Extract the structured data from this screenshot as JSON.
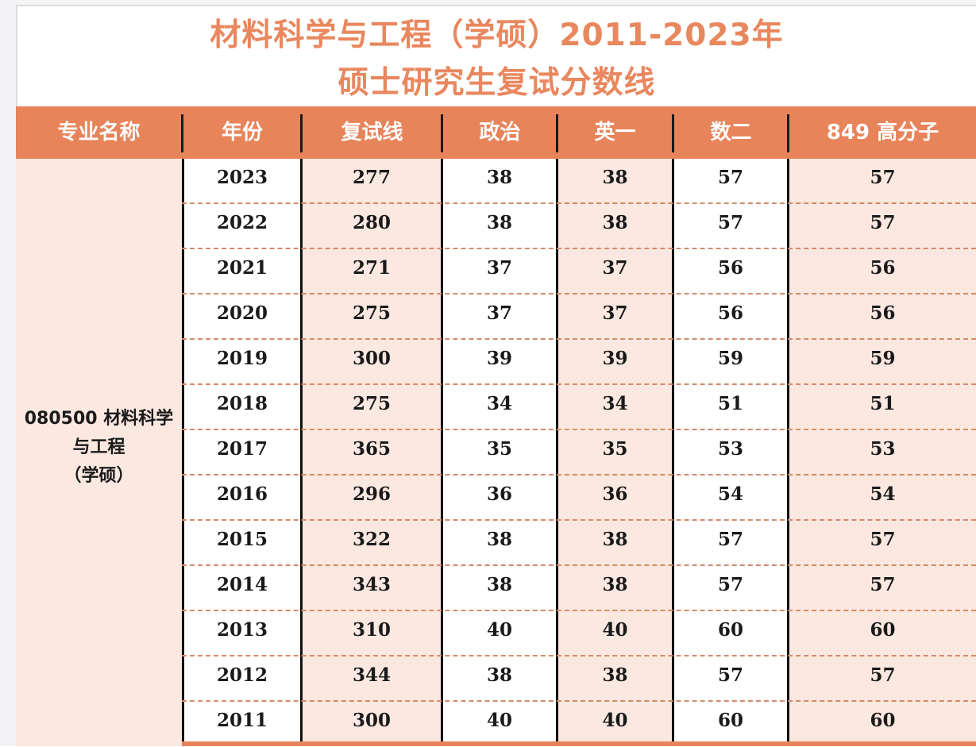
{
  "title": {
    "line1": "材料科学与工程（学硕）2011-2023年",
    "line2": "硕士研究生复试分数线"
  },
  "colors": {
    "accent": "#e8845a",
    "title": "#e9875e",
    "row_tint": "#fbe8e0",
    "separator": "#111111"
  },
  "table": {
    "headers": [
      "专业名称",
      "年份",
      "复试线",
      "政治",
      "英一",
      "数二",
      "849 高分子"
    ],
    "major_name_lines": [
      "080500 材料科学",
      "与工程",
      "（学硕）"
    ],
    "rows": [
      [
        "2023",
        "277",
        "38",
        "38",
        "57",
        "57"
      ],
      [
        "2022",
        "280",
        "38",
        "38",
        "57",
        "57"
      ],
      [
        "2021",
        "271",
        "37",
        "37",
        "56",
        "56"
      ],
      [
        "2020",
        "275",
        "37",
        "37",
        "56",
        "56"
      ],
      [
        "2019",
        "300",
        "39",
        "39",
        "59",
        "59"
      ],
      [
        "2018",
        "275",
        "34",
        "34",
        "51",
        "51"
      ],
      [
        "2017",
        "365",
        "35",
        "35",
        "53",
        "53"
      ],
      [
        "2016",
        "296",
        "36",
        "36",
        "54",
        "54"
      ],
      [
        "2015",
        "322",
        "38",
        "38",
        "57",
        "57"
      ],
      [
        "2014",
        "343",
        "38",
        "38",
        "57",
        "57"
      ],
      [
        "2013",
        "310",
        "40",
        "40",
        "60",
        "60"
      ],
      [
        "2012",
        "344",
        "38",
        "38",
        "57",
        "57"
      ],
      [
        "2011",
        "300",
        "40",
        "40",
        "60",
        "60"
      ]
    ]
  }
}
